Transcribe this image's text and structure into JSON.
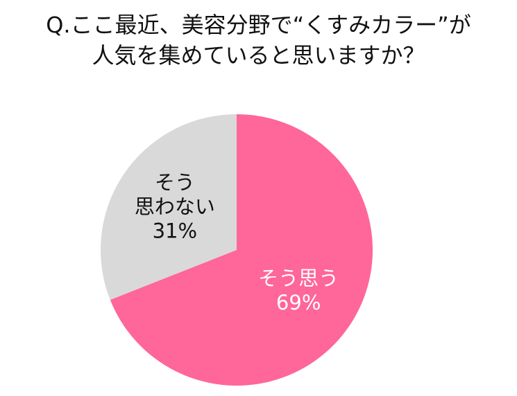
{
  "title": {
    "line1": "Q.ここ最近、美容分野で“くすみカラー”が",
    "line2": "人気を集めていると思いますか？"
  },
  "chart_data": {
    "type": "pie",
    "title": "Q.ここ最近、美容分野で“くすみカラー”が人気を集めていると思いますか？",
    "slices": [
      {
        "label_lines": [
          "そう思う"
        ],
        "value": 69,
        "value_label": "69%",
        "color": "#ff6699",
        "text_color": "#ffffff"
      },
      {
        "label_lines": [
          "そう",
          "思わない"
        ],
        "value": 31,
        "value_label": "31%",
        "color": "#d9d9d9",
        "text_color": "#111111"
      }
    ],
    "start": "12 o'clock",
    "direction": "clockwise",
    "legend": "none"
  }
}
